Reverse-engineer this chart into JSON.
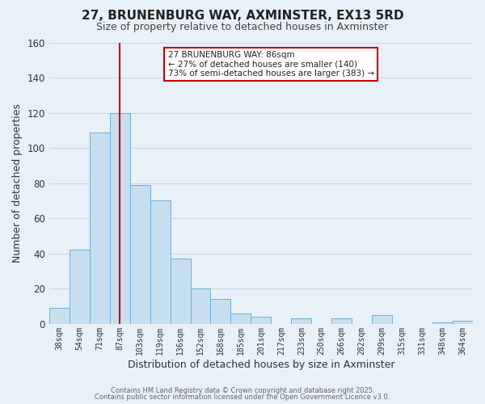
{
  "title": "27, BRUNENBURG WAY, AXMINSTER, EX13 5RD",
  "subtitle": "Size of property relative to detached houses in Axminster",
  "xlabel": "Distribution of detached houses by size in Axminster",
  "ylabel": "Number of detached properties",
  "bar_color": "#c8dff0",
  "bar_edge_color": "#6ab0d4",
  "categories": [
    "38sqm",
    "54sqm",
    "71sqm",
    "87sqm",
    "103sqm",
    "119sqm",
    "136sqm",
    "152sqm",
    "168sqm",
    "185sqm",
    "201sqm",
    "217sqm",
    "233sqm",
    "250sqm",
    "266sqm",
    "282sqm",
    "299sqm",
    "315sqm",
    "331sqm",
    "348sqm",
    "364sqm"
  ],
  "values": [
    9,
    42,
    109,
    120,
    79,
    70,
    37,
    20,
    14,
    6,
    4,
    0,
    3,
    0,
    3,
    0,
    5,
    0,
    0,
    1,
    2
  ],
  "vline_color": "#cc0000",
  "vline_pos": 3.5,
  "ylim": [
    0,
    160
  ],
  "yticks": [
    0,
    20,
    40,
    60,
    80,
    100,
    120,
    140,
    160
  ],
  "annotation_title": "27 BRUNENBURG WAY: 86sqm",
  "annotation_line1": "← 27% of detached houses are smaller (140)",
  "annotation_line2": "73% of semi-detached houses are larger (383) →",
  "annotation_box_color": "#ffffff",
  "annotation_box_edge": "#cc0000",
  "bg_color": "#e8f0f8",
  "plot_bg_color": "#e8f0f8",
  "grid_color": "#c8d8e8",
  "footer1": "Contains HM Land Registry data © Crown copyright and database right 2025.",
  "footer2": "Contains public sector information licensed under the Open Government Licence v3.0."
}
